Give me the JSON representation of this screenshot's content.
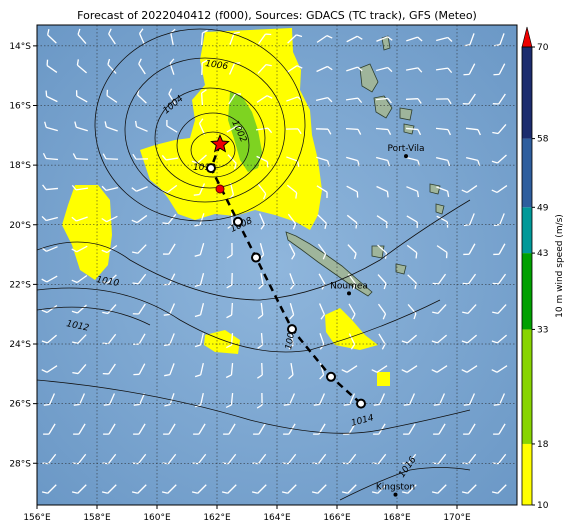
{
  "title": "Forecast of 2022040412 (f000), Sources: GDACS (TC track), GFS (Meteo)",
  "map": {
    "lon_range": [
      156,
      172
    ],
    "lat_range": [
      -29.4,
      -13.3
    ],
    "xticks": [
      "156°E",
      "158°E",
      "160°E",
      "162°E",
      "164°E",
      "166°E",
      "168°E",
      "170°E"
    ],
    "yticks": [
      "14°S",
      "16°S",
      "18°S",
      "20°S",
      "22°S",
      "24°S",
      "26°S",
      "28°S"
    ],
    "grid": "dotted",
    "ocean_color": "#6f9dc9",
    "wind_field_color": "#ffff00",
    "wind_core_color": "#7ed321"
  },
  "cities": [
    {
      "name": "Port-Vila",
      "lon": 168.3,
      "lat": -17.7
    },
    {
      "name": "Noumea",
      "lon": 166.4,
      "lat": -22.3
    },
    {
      "name": "Kingston",
      "lon": 167.95,
      "lat": -29.05
    }
  ],
  "isobar_labels": [
    "1006",
    "1004",
    "1002",
    "1008",
    "1010",
    "1012",
    "1014",
    "1010",
    "1016",
    "1008"
  ],
  "track": {
    "current_position": {
      "lon": 162.1,
      "lat": -17.3
    },
    "forecast_points": [
      {
        "lon": 161.8,
        "lat": -18.1
      },
      {
        "lon": 162.7,
        "lat": -19.9
      },
      {
        "lon": 163.3,
        "lat": -21.1
      },
      {
        "lon": 164.5,
        "lat": -23.5
      },
      {
        "lon": 165.8,
        "lat": -25.1
      },
      {
        "lon": 166.8,
        "lat": -26.0
      }
    ],
    "observed_point": {
      "lon": 162.1,
      "lat": -18.8
    }
  },
  "colorbar": {
    "label": "10 m wind speed (m/s)",
    "ticks": [
      "10",
      "18",
      "33",
      "43",
      "49",
      "58",
      "70"
    ],
    "colors": [
      "#ffff00",
      "#88d400",
      "#00a000",
      "#009999",
      "#2e5e9e",
      "#1c2c6e"
    ]
  }
}
